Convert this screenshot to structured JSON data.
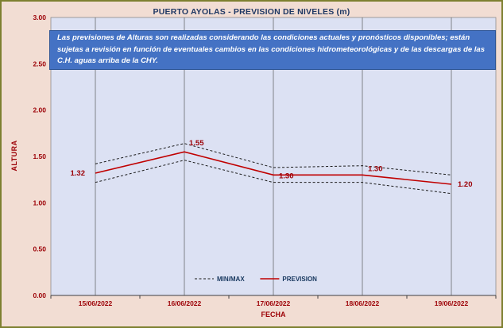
{
  "banner": {
    "text": "Las previsiones de Alturas son realizadas considerando las condiciones actuales y pronósticos disponibles;  están sujetas a revisión en función de eventuales cambios en las condiciones hidrometeorológicas y de las descargas de las C.H. aguas arriba de la CHY."
  },
  "chart_data": {
    "type": "line",
    "title": "PUERTO AYOLAS - PREVISION DE NIVELES (m)",
    "categories": [
      "15/06/2022",
      "16/06/2022",
      "17/06/2022",
      "18/06/2022",
      "19/06/2022"
    ],
    "series": [
      {
        "name": "MIN/MAX",
        "role": "max",
        "style": "dashed-black",
        "values": [
          1.42,
          1.64,
          1.38,
          1.4,
          1.3
        ]
      },
      {
        "name": "PREVISION",
        "role": "forecast",
        "style": "solid-red",
        "values": [
          1.32,
          1.55,
          1.3,
          1.3,
          1.2
        ],
        "labels": [
          "1.32",
          "1.55",
          "1.30",
          "1.30",
          "1.20"
        ]
      },
      {
        "name": "MIN/MAX",
        "role": "min",
        "style": "dashed-black",
        "values": [
          1.22,
          1.46,
          1.22,
          1.22,
          1.1
        ]
      }
    ],
    "xlabel": "FECHA",
    "ylabel": "ALTURA",
    "ylim": [
      0,
      3
    ],
    "ytick_step": 0.5,
    "ytick_labels": [
      "0.00",
      "0.50",
      "1.00",
      "1.50",
      "2.00",
      "2.50",
      "3.00"
    ],
    "legend": [
      "MIN/MAX",
      "PREVISION"
    ],
    "legend_position": "bottom-inside",
    "grid": "vertical-only",
    "colors": {
      "background": "#F2DDD3",
      "frame_border": "#7E8030",
      "plot_bg": "#DCE1F3",
      "banner_bg": "#4472C4",
      "title": "#1F3864",
      "axis_text": "#9C0006",
      "prevision_line": "#C00000",
      "minmax_line": "#1A1A1A"
    }
  }
}
